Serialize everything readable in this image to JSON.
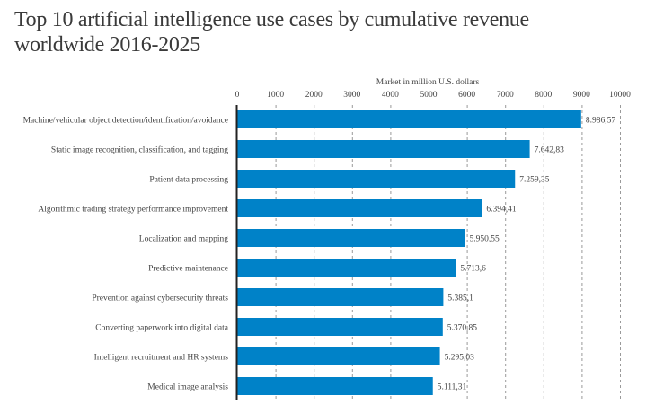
{
  "chart_data": {
    "type": "bar",
    "orientation": "horizontal",
    "title_lines": [
      "Top 10 artificial intelligence use cases by cumulative revenue",
      "worldwide 2016-2025"
    ],
    "xlabel": "Market in million U.S. dollars",
    "ylabel": "",
    "xlim": [
      0,
      10000
    ],
    "x_ticks": [
      0,
      1000,
      2000,
      3000,
      4000,
      5000,
      6000,
      7000,
      8000,
      9000,
      10000
    ],
    "x_tick_labels": [
      "0",
      "1000",
      "2000",
      "3000",
      "4000",
      "5000",
      "6000",
      "7000",
      "8000",
      "9000",
      "10000"
    ],
    "x_axis_position": "top",
    "grid": "vertical dashed",
    "categories": [
      "Machine/vehicular object detection/identification/avoidance",
      "Static image recognition, classification, and tagging",
      "Patient data processing",
      "Algorithmic trading strategy performance  improvement",
      "Localization and mapping",
      "Predictive maintenance",
      "Prevention against cybersecurity  threats",
      "Converting paperwork  into digital data",
      "Intelligent recruitment and HR systems",
      "Medical image analysis"
    ],
    "values": [
      8986.57,
      7642.83,
      7259.35,
      6394.41,
      5950.55,
      5713.6,
      5385.1,
      5370.85,
      5295.03,
      5111.31
    ],
    "value_labels": [
      "8.986,57",
      "7.642,83",
      "7.259,35",
      "6.394,41",
      "5.950,55",
      "5.713,6",
      "5.385,1",
      "5.370,85",
      "5.295,03",
      "5.111,31"
    ],
    "colors": {
      "bar": "#0082c8",
      "axis": "#222222",
      "grid": "#9a9a9a",
      "text": "#444444"
    }
  }
}
